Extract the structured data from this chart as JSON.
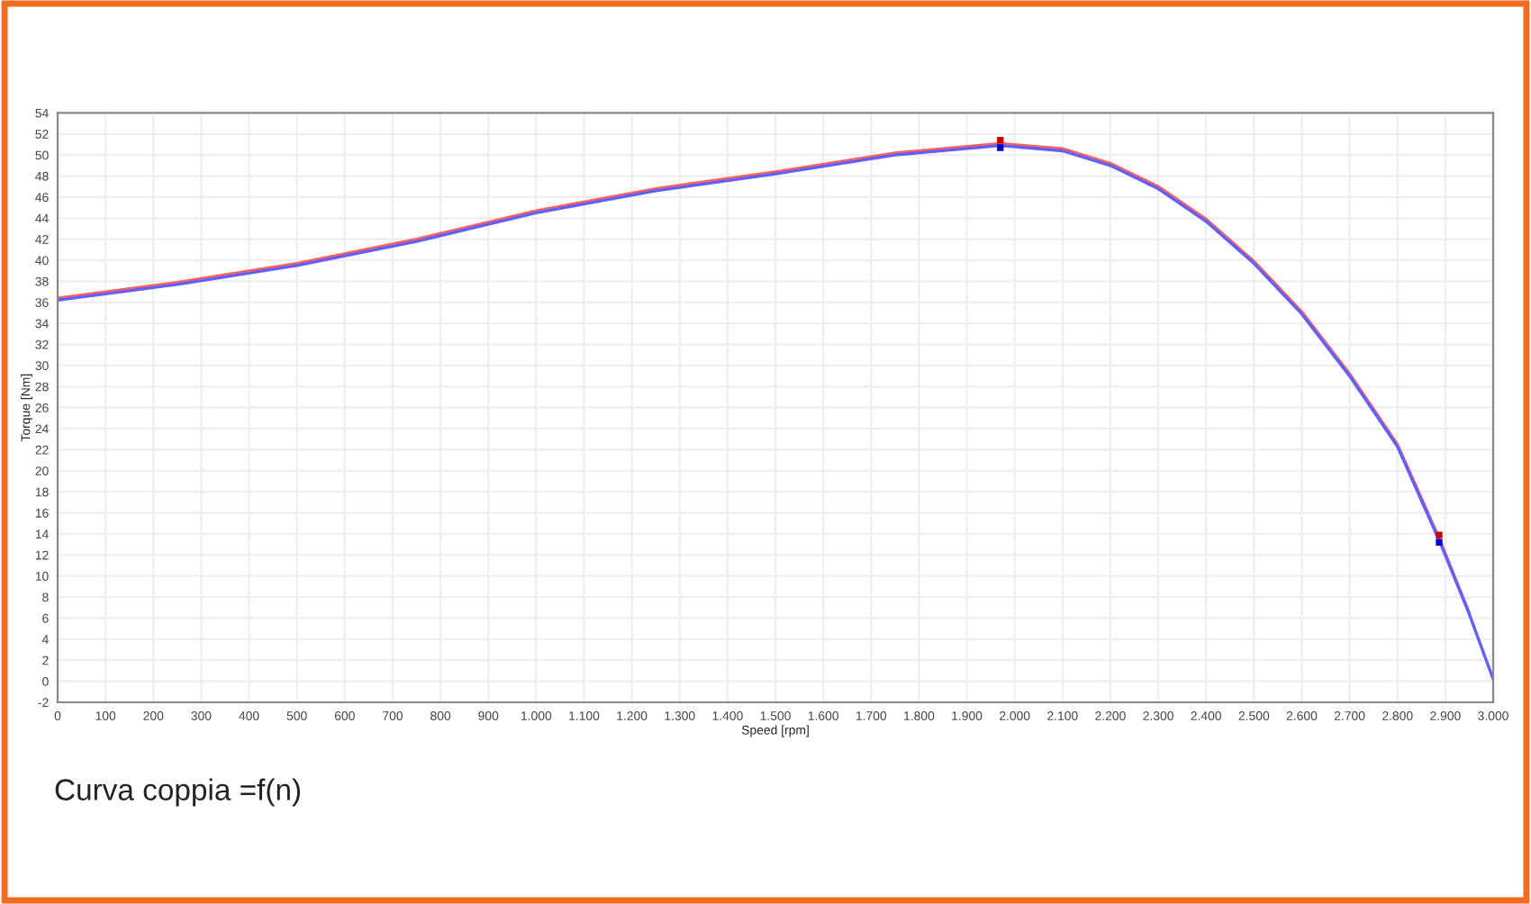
{
  "chart_data": {
    "type": "line",
    "xlabel": "Speed [rpm]",
    "ylabel": "Torque [Nm]",
    "xlim": [
      0,
      3000
    ],
    "ylim": [
      -2,
      54
    ],
    "xticks": [
      {
        "value": 0,
        "label": "0"
      },
      {
        "value": 100,
        "label": "100"
      },
      {
        "value": 200,
        "label": "200"
      },
      {
        "value": 300,
        "label": "300"
      },
      {
        "value": 400,
        "label": "400"
      },
      {
        "value": 500,
        "label": "500"
      },
      {
        "value": 600,
        "label": "600"
      },
      {
        "value": 700,
        "label": "700"
      },
      {
        "value": 800,
        "label": "800"
      },
      {
        "value": 900,
        "label": "900"
      },
      {
        "value": 1000,
        "label": "1.000"
      },
      {
        "value": 1100,
        "label": "1.100"
      },
      {
        "value": 1200,
        "label": "1.200"
      },
      {
        "value": 1300,
        "label": "1.300"
      },
      {
        "value": 1400,
        "label": "1.400"
      },
      {
        "value": 1500,
        "label": "1.500"
      },
      {
        "value": 1600,
        "label": "1.600"
      },
      {
        "value": 1700,
        "label": "1.700"
      },
      {
        "value": 1800,
        "label": "1.800"
      },
      {
        "value": 1900,
        "label": "1.900"
      },
      {
        "value": 2000,
        "label": "2.000"
      },
      {
        "value": 2100,
        "label": "2.100"
      },
      {
        "value": 2200,
        "label": "2.200"
      },
      {
        "value": 2300,
        "label": "2.300"
      },
      {
        "value": 2400,
        "label": "2.400"
      },
      {
        "value": 2500,
        "label": "2.500"
      },
      {
        "value": 2600,
        "label": "2.600"
      },
      {
        "value": 2700,
        "label": "2.700"
      },
      {
        "value": 2800,
        "label": "2.800"
      },
      {
        "value": 2900,
        "label": "2.900"
      },
      {
        "value": 3000,
        "label": "3.000"
      }
    ],
    "yticks": [
      -2,
      0,
      2,
      4,
      6,
      8,
      10,
      12,
      14,
      16,
      18,
      20,
      22,
      24,
      26,
      28,
      30,
      32,
      34,
      36,
      38,
      40,
      42,
      44,
      46,
      48,
      50,
      52,
      54
    ],
    "grid": true,
    "marker": "none",
    "line_style": "solid",
    "series": [
      {
        "color": "#ff6060",
        "x": [
          0,
          250,
          500,
          750,
          1000,
          1250,
          1500,
          1750,
          1970,
          2100,
          2200,
          2300,
          2400,
          2500,
          2600,
          2700,
          2800,
          2887,
          2950
        ],
        "values": [
          36.4,
          37.9,
          39.7,
          42.0,
          44.7,
          46.8,
          48.4,
          50.2,
          51.1,
          50.6,
          49.2,
          47.0,
          43.9,
          39.9,
          35.1,
          29.2,
          22.5,
          13.6,
          6.5
        ]
      },
      {
        "color": "#6060ff",
        "x": [
          0,
          250,
          500,
          750,
          1000,
          1250,
          1500,
          1750,
          1970,
          2100,
          2200,
          2300,
          2400,
          2500,
          2600,
          2700,
          2800,
          2887,
          2950,
          3000
        ],
        "values": [
          36.2,
          37.7,
          39.5,
          41.8,
          44.5,
          46.6,
          48.2,
          50.0,
          50.9,
          50.4,
          49.0,
          46.8,
          43.7,
          39.7,
          34.9,
          29.0,
          22.3,
          13.4,
          6.4,
          0.2
        ]
      },
      {
        "type": "scatter",
        "marker": "square",
        "color": "#cc0000",
        "x": [
          1970,
          2887
        ],
        "values": [
          51.4,
          13.9
        ]
      },
      {
        "type": "scatter",
        "marker": "square",
        "color": "#0000cc",
        "x": [
          1970,
          2887
        ],
        "values": [
          50.7,
          13.2
        ]
      }
    ],
    "annotations": [
      "Curva coppia =f(n)"
    ]
  }
}
